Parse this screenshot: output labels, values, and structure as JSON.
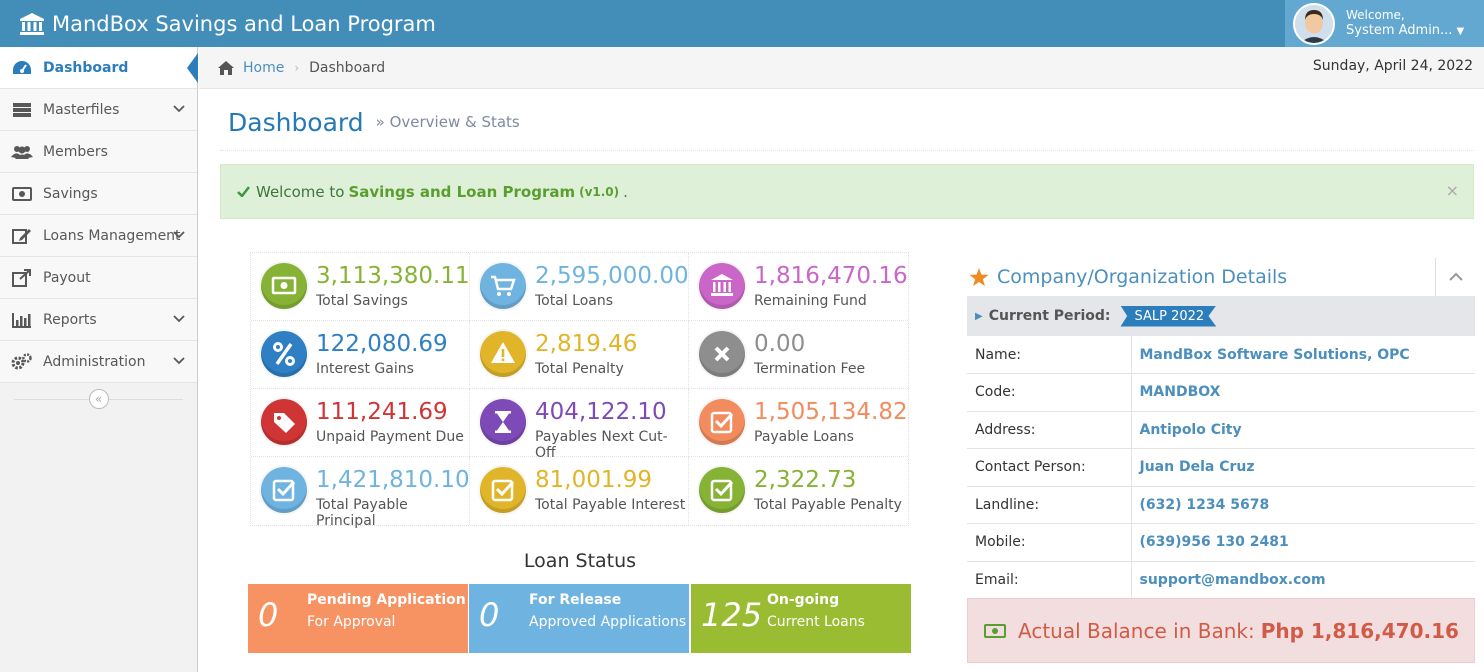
{
  "app": {
    "title": "MandBox Savings and Loan Program"
  },
  "user": {
    "welcome": "Welcome,",
    "name": "System Admin..."
  },
  "sidebar": {
    "items": [
      {
        "label": "Dashboard"
      },
      {
        "label": "Masterfiles"
      },
      {
        "label": "Members"
      },
      {
        "label": "Savings"
      },
      {
        "label": "Loans Management"
      },
      {
        "label": "Payout"
      },
      {
        "label": "Reports"
      },
      {
        "label": "Administration"
      }
    ],
    "collapse_glyph": "«"
  },
  "breadcrumb": {
    "home": "Home",
    "current": "Dashboard",
    "separator": "›"
  },
  "date": "Sunday, April 24, 2022",
  "page": {
    "title": "Dashboard",
    "subtitle": "» Overview & Stats"
  },
  "alert": {
    "prefix": "Welcome to",
    "app": "Savings and Loan Program",
    "version": "(v1.0)",
    "suffix": ".",
    "close": "×"
  },
  "stats": [
    {
      "value": "3,113,380.11",
      "label": "Total Savings",
      "color": "#86b335",
      "icon": "money-icon"
    },
    {
      "value": "2,595,000.00",
      "label": "Total Loans",
      "color": "#6fb3e0",
      "icon": "cart-icon"
    },
    {
      "value": "1,816,470.16",
      "label": "Remaining Fund",
      "color": "#c966c8",
      "icon": "bank-icon"
    },
    {
      "value": "122,080.69",
      "label": "Interest Gains",
      "color": "#2e7fc3",
      "icon": "percent-icon"
    },
    {
      "value": "2,819.46",
      "label": "Total Penalty",
      "color": "#e0b52a",
      "icon": "warning-icon"
    },
    {
      "value": "0.00",
      "label": "Termination Fee",
      "color": "#8e8e8e",
      "icon": "x-icon"
    },
    {
      "value": "111,241.69",
      "label": "Unpaid Payment Due",
      "color": "#d03535",
      "icon": "tags-icon"
    },
    {
      "value": "404,122.10",
      "label": "Payables Next Cut-Off",
      "color": "#7d4ab8",
      "icon": "hourglass-icon"
    },
    {
      "value": "1,505,134.82",
      "label": "Payable Loans",
      "color": "#f28b5e",
      "icon": "check-square-icon"
    },
    {
      "value": "1,421,810.10",
      "label": "Total Payable Principal",
      "color": "#6fb3e0",
      "icon": "check-square-icon"
    },
    {
      "value": "81,001.99",
      "label": "Total Payable Interest",
      "color": "#e0b52a",
      "icon": "check-square-icon"
    },
    {
      "value": "2,322.73",
      "label": "Total Payable Penalty",
      "color": "#86b335",
      "icon": "check-square-icon"
    }
  ],
  "loan_status": {
    "title": "Loan Status",
    "boxes": [
      {
        "count": "0",
        "title": "Pending Application",
        "sub": "For Approval",
        "color": "#f79263"
      },
      {
        "count": "0",
        "title": "For Release",
        "sub": "Approved Applications",
        "color": "#6fb3e0"
      },
      {
        "count": "125",
        "title": "On-going",
        "sub": "Current Loans",
        "color": "#9abc32"
      }
    ]
  },
  "company": {
    "title": "Company/Organization Details",
    "period_label": "Current Period:",
    "period_tag": "SALP 2022",
    "rows": [
      {
        "k": "Name:",
        "v": "MandBox Software Solutions, OPC"
      },
      {
        "k": "Code:",
        "v": "MANDBOX"
      },
      {
        "k": "Address:",
        "v": "Antipolo City"
      },
      {
        "k": "Contact Person:",
        "v": "Juan Dela Cruz"
      },
      {
        "k": "Landline:",
        "v": "(632) 1234 5678"
      },
      {
        "k": "Mobile:",
        "v": "(639)956 130 2481"
      },
      {
        "k": "Email:",
        "v": "support@mandbox.com"
      }
    ],
    "balance_label": "Actual Balance in Bank:",
    "balance_value": "Php 1,816,470.16"
  }
}
